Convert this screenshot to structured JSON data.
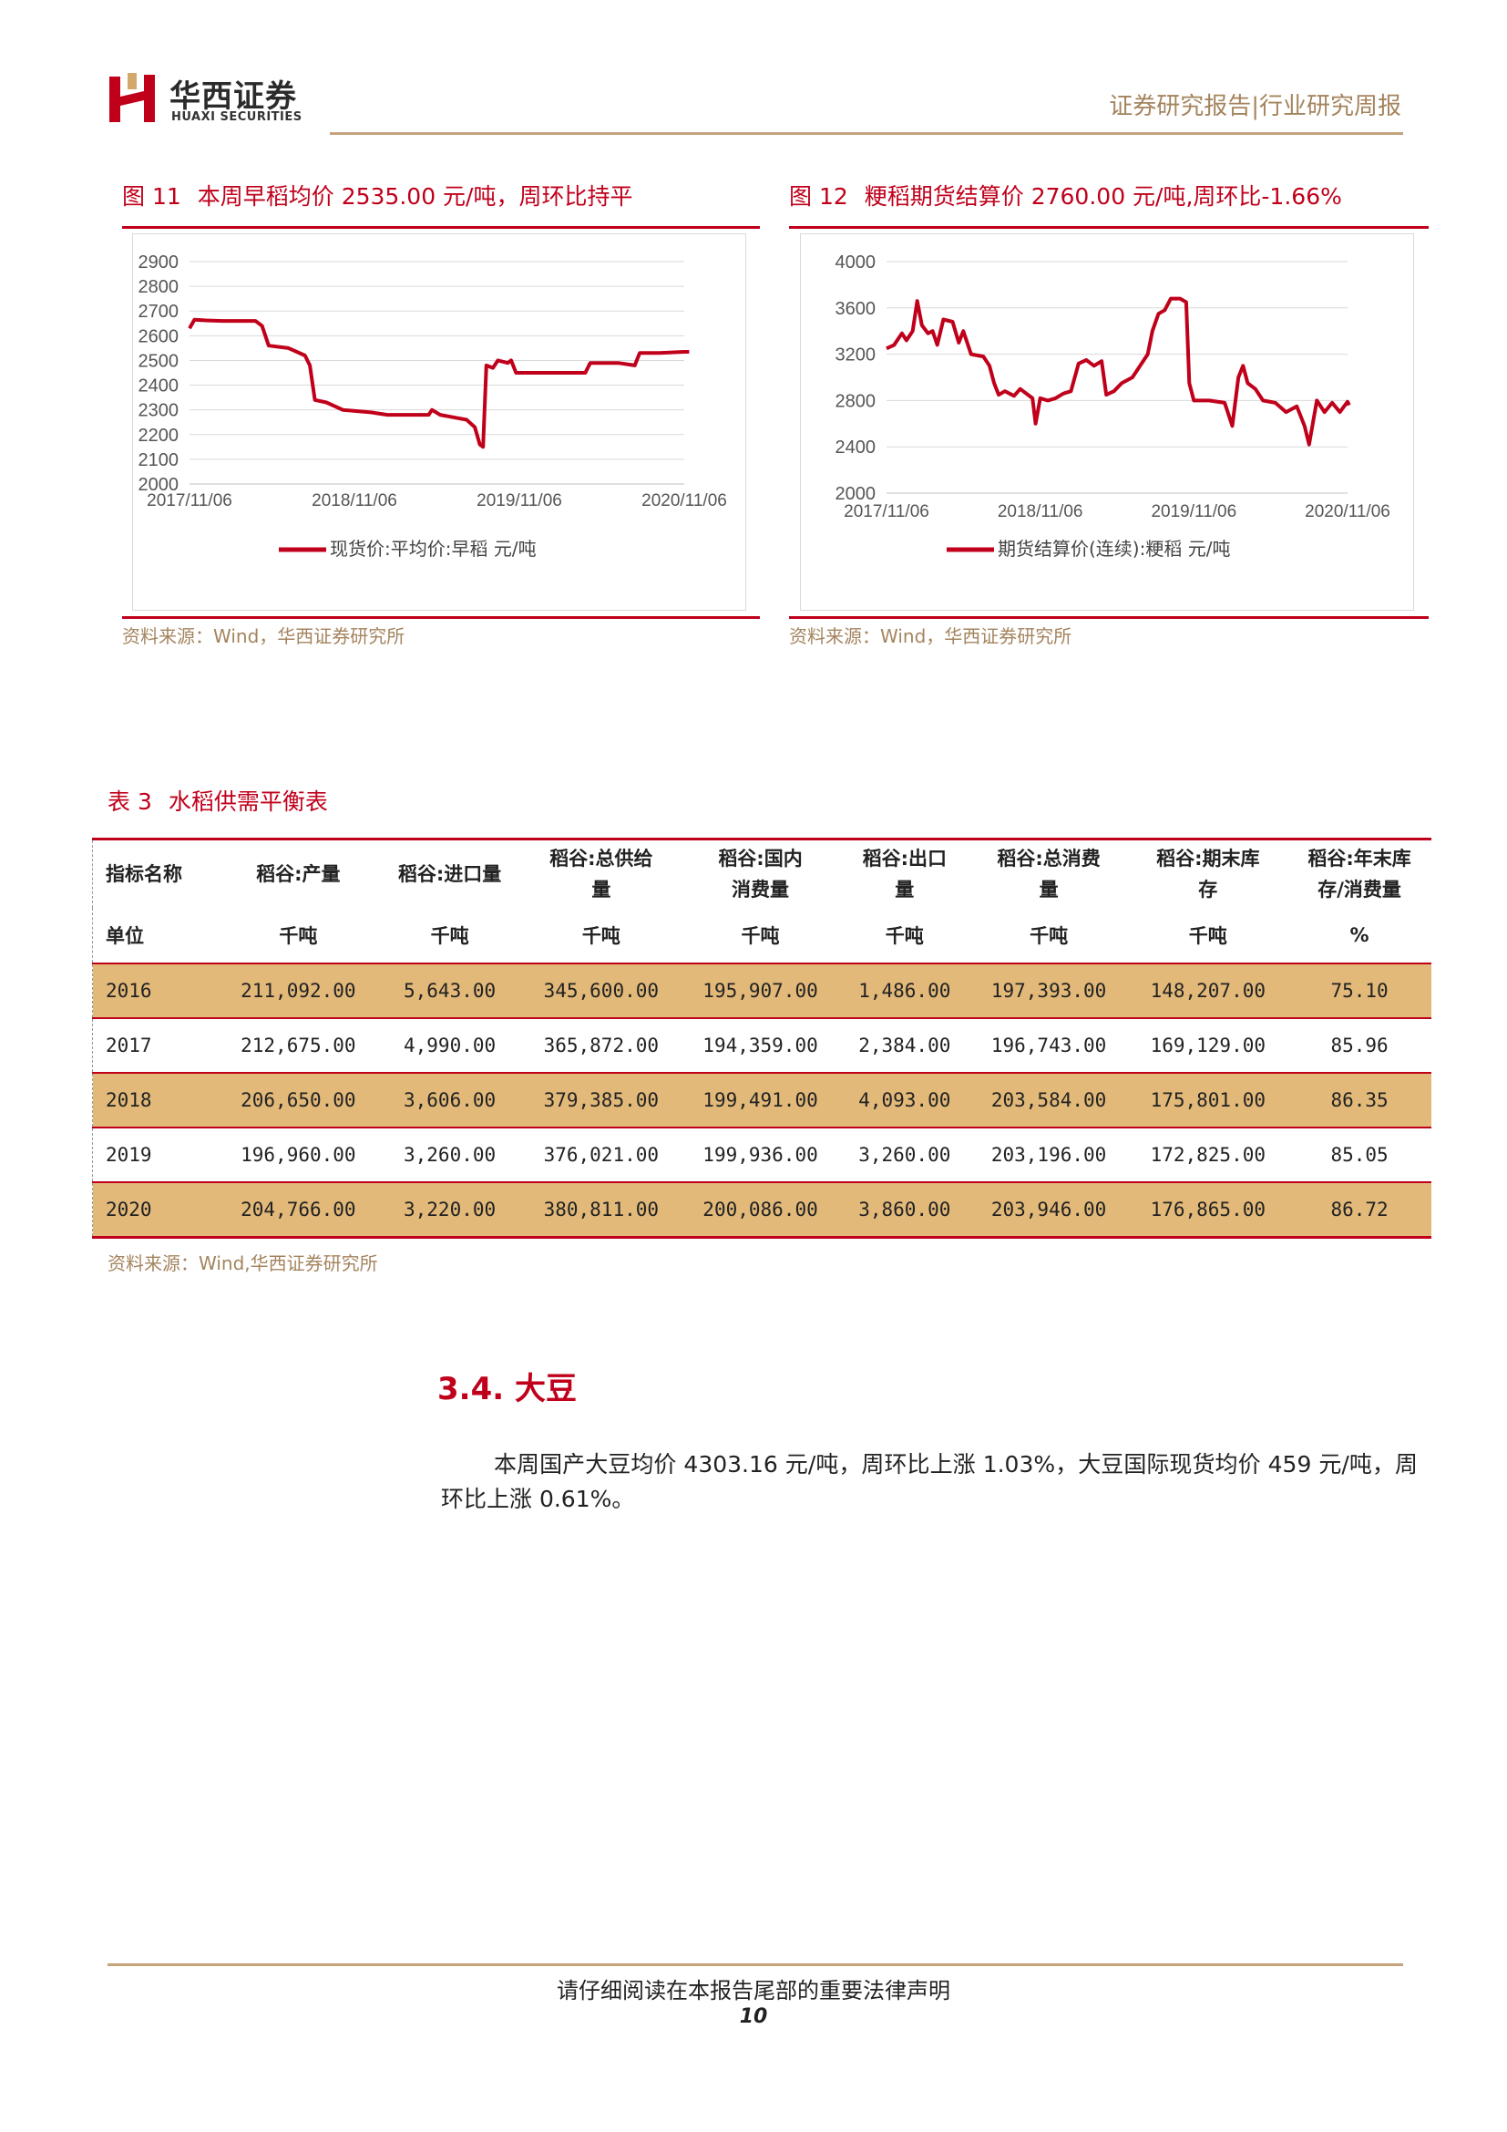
{
  "header": {
    "logo_cn": "华西证券",
    "logo_en": "HUAXI SECURITIES",
    "report_type": "证券研究报告|行业研究周报",
    "brand_color": "#c0001b",
    "accent_color": "#c5a27b"
  },
  "figures": [
    {
      "number": "图 11",
      "title": "本周早稻均价 2535.00 元/吨，周环比持平",
      "legend": "现货价:平均价:早稻  元/吨",
      "source": "资料来源：Wind，华西证券研究所"
    },
    {
      "number": "图 12",
      "title": "粳稻期货结算价 2760.00 元/吨,周环比-1.66%",
      "legend": "期货结算价(连续):粳稻  元/吨",
      "source": "资料来源：Wind，华西证券研究所"
    }
  ],
  "chart_data": [
    {
      "type": "line",
      "title": "本周早稻均价 2535.00 元/吨，周环比持平",
      "series": [
        {
          "name": "现货价:平均价:早稻  元/吨",
          "color": "#c0001b",
          "points": [
            [
              2017.85,
              2630
            ],
            [
              2017.88,
              2665
            ],
            [
              2017.95,
              2662
            ],
            [
              2018.05,
              2660
            ],
            [
              2018.25,
              2660
            ],
            [
              2018.29,
              2640
            ],
            [
              2018.33,
              2560
            ],
            [
              2018.45,
              2550
            ],
            [
              2018.55,
              2520
            ],
            [
              2018.58,
              2480
            ],
            [
              2018.61,
              2340
            ],
            [
              2018.68,
              2330
            ],
            [
              2018.78,
              2300
            ],
            [
              2018.95,
              2290
            ],
            [
              2019.05,
              2280
            ],
            [
              2019.2,
              2280
            ],
            [
              2019.3,
              2280
            ],
            [
              2019.32,
              2300
            ],
            [
              2019.37,
              2280
            ],
            [
              2019.45,
              2270
            ],
            [
              2019.53,
              2260
            ],
            [
              2019.58,
              2230
            ],
            [
              2019.61,
              2160
            ],
            [
              2019.63,
              2150
            ],
            [
              2019.65,
              2480
            ],
            [
              2019.69,
              2470
            ],
            [
              2019.72,
              2500
            ],
            [
              2019.78,
              2490
            ],
            [
              2019.8,
              2500
            ],
            [
              2019.83,
              2450
            ],
            [
              2019.95,
              2450
            ],
            [
              2020.1,
              2450
            ],
            [
              2020.25,
              2450
            ],
            [
              2020.28,
              2490
            ],
            [
              2020.45,
              2490
            ],
            [
              2020.55,
              2480
            ],
            [
              2020.58,
              2530
            ],
            [
              2020.7,
              2530
            ],
            [
              2020.85,
              2535
            ],
            [
              2020.88,
              2535
            ]
          ]
        }
      ],
      "x_ticks": [
        "2017/11/06",
        "2018/11/06",
        "2019/11/06",
        "2020/11/06"
      ],
      "x_tick_values": [
        2017.85,
        2018.85,
        2019.85,
        2020.85
      ],
      "xlim": [
        2017.85,
        2020.85
      ],
      "y_ticks": [
        2000,
        2100,
        2200,
        2300,
        2400,
        2500,
        2600,
        2700,
        2800,
        2900
      ],
      "ylim": [
        2000,
        2900
      ],
      "grid": true,
      "legend_position": "bottom"
    },
    {
      "type": "line",
      "title": "粳稻期货结算价 2760.00 元/吨,周环比-1.66%",
      "series": [
        {
          "name": "期货结算价(连续):粳稻  元/吨",
          "color": "#c0001b",
          "points": [
            [
              2017.85,
              3250
            ],
            [
              2017.9,
              3280
            ],
            [
              2017.95,
              3380
            ],
            [
              2017.98,
              3320
            ],
            [
              2018.02,
              3400
            ],
            [
              2018.05,
              3660
            ],
            [
              2018.08,
              3450
            ],
            [
              2018.12,
              3380
            ],
            [
              2018.15,
              3400
            ],
            [
              2018.18,
              3280
            ],
            [
              2018.22,
              3500
            ],
            [
              2018.28,
              3480
            ],
            [
              2018.32,
              3300
            ],
            [
              2018.35,
              3400
            ],
            [
              2018.4,
              3200
            ],
            [
              2018.48,
              3180
            ],
            [
              2018.52,
              3100
            ],
            [
              2018.55,
              2950
            ],
            [
              2018.58,
              2850
            ],
            [
              2018.62,
              2880
            ],
            [
              2018.68,
              2840
            ],
            [
              2018.72,
              2900
            ],
            [
              2018.77,
              2850
            ],
            [
              2018.8,
              2820
            ],
            [
              2018.82,
              2600
            ],
            [
              2018.85,
              2820
            ],
            [
              2018.9,
              2800
            ],
            [
              2018.95,
              2820
            ],
            [
              2019.0,
              2860
            ],
            [
              2019.05,
              2880
            ],
            [
              2019.1,
              3120
            ],
            [
              2019.15,
              3150
            ],
            [
              2019.2,
              3100
            ],
            [
              2019.25,
              3140
            ],
            [
              2019.28,
              2850
            ],
            [
              2019.33,
              2880
            ],
            [
              2019.38,
              2950
            ],
            [
              2019.45,
              3000
            ],
            [
              2019.5,
              3100
            ],
            [
              2019.55,
              3200
            ],
            [
              2019.58,
              3400
            ],
            [
              2019.62,
              3550
            ],
            [
              2019.66,
              3580
            ],
            [
              2019.7,
              3680
            ],
            [
              2019.76,
              3680
            ],
            [
              2019.8,
              3650
            ],
            [
              2019.82,
              2950
            ],
            [
              2019.85,
              2800
            ],
            [
              2019.9,
              2800
            ],
            [
              2019.95,
              2800
            ],
            [
              2020.05,
              2780
            ],
            [
              2020.1,
              2580
            ],
            [
              2020.14,
              3000
            ],
            [
              2020.17,
              3100
            ],
            [
              2020.2,
              2950
            ],
            [
              2020.25,
              2900
            ],
            [
              2020.3,
              2800
            ],
            [
              2020.38,
              2780
            ],
            [
              2020.45,
              2700
            ],
            [
              2020.52,
              2750
            ],
            [
              2020.57,
              2580
            ],
            [
              2020.6,
              2420
            ],
            [
              2020.65,
              2800
            ],
            [
              2020.7,
              2700
            ],
            [
              2020.75,
              2780
            ],
            [
              2020.8,
              2700
            ],
            [
              2020.85,
              2790
            ],
            [
              2020.86,
              2760
            ]
          ]
        }
      ],
      "x_ticks": [
        "2017/11/06",
        "2018/11/06",
        "2019/11/06",
        "2020/11/06"
      ],
      "x_tick_values": [
        2017.85,
        2018.85,
        2019.85,
        2020.85
      ],
      "xlim": [
        2017.85,
        2020.85
      ],
      "y_ticks": [
        2000,
        2400,
        2800,
        3200,
        3600,
        4000
      ],
      "ylim": [
        2000,
        4000
      ],
      "grid": true,
      "legend_position": "bottom"
    }
  ],
  "table": {
    "number": "表 3",
    "title": "水稻供需平衡表",
    "headers": [
      "指标名称",
      "稻谷:产量",
      "稻谷:进口量",
      "稻谷:总供给量",
      "稻谷:国内消费量",
      "稻谷:出口量",
      "稻谷:总消费量",
      "稻谷:期末库存",
      "稻谷:年末库存/消费量"
    ],
    "header_lines": [
      [
        "指标名称"
      ],
      [
        "稻谷:产量"
      ],
      [
        "稻谷:进口量"
      ],
      [
        "稻谷:总供给",
        "量"
      ],
      [
        "稻谷:国内",
        "消费量"
      ],
      [
        "稻谷:出口",
        "量"
      ],
      [
        "稻谷:总消费",
        "量"
      ],
      [
        "稻谷:期末库",
        "存"
      ],
      [
        "稻谷:年末库",
        "存/消费量"
      ]
    ],
    "units": [
      "单位",
      "千吨",
      "千吨",
      "千吨",
      "千吨",
      "千吨",
      "千吨",
      "千吨",
      "%"
    ],
    "rows": [
      [
        "2016",
        "211,092.00",
        "5,643.00",
        "345,600.00",
        "195,907.00",
        "1,486.00",
        "197,393.00",
        "148,207.00",
        "75.10"
      ],
      [
        "2017",
        "212,675.00",
        "4,990.00",
        "365,872.00",
        "194,359.00",
        "2,384.00",
        "196,743.00",
        "169,129.00",
        "85.96"
      ],
      [
        "2018",
        "206,650.00",
        "3,606.00",
        "379,385.00",
        "199,491.00",
        "4,093.00",
        "203,584.00",
        "175,801.00",
        "86.35"
      ],
      [
        "2019",
        "196,960.00",
        "3,260.00",
        "376,021.00",
        "199,936.00",
        "3,260.00",
        "203,196.00",
        "172,825.00",
        "85.05"
      ],
      [
        "2020",
        "204,766.00",
        "3,220.00",
        "380,811.00",
        "200,086.00",
        "3,860.00",
        "203,946.00",
        "176,865.00",
        "86.72"
      ]
    ],
    "source": "资料来源：Wind,华西证券研究所",
    "stripe_color": "#e2b979"
  },
  "section": {
    "title": "3.4. 大豆",
    "body": "本周国产大豆均价 4303.16 元/吨，周环比上涨 1.03%，大豆国际现货均价 459 元/吨，周环比上涨 0.61%。"
  },
  "footer": {
    "disclaimer": "请仔细阅读在本报告尾部的重要法律声明",
    "page_number": "10"
  }
}
